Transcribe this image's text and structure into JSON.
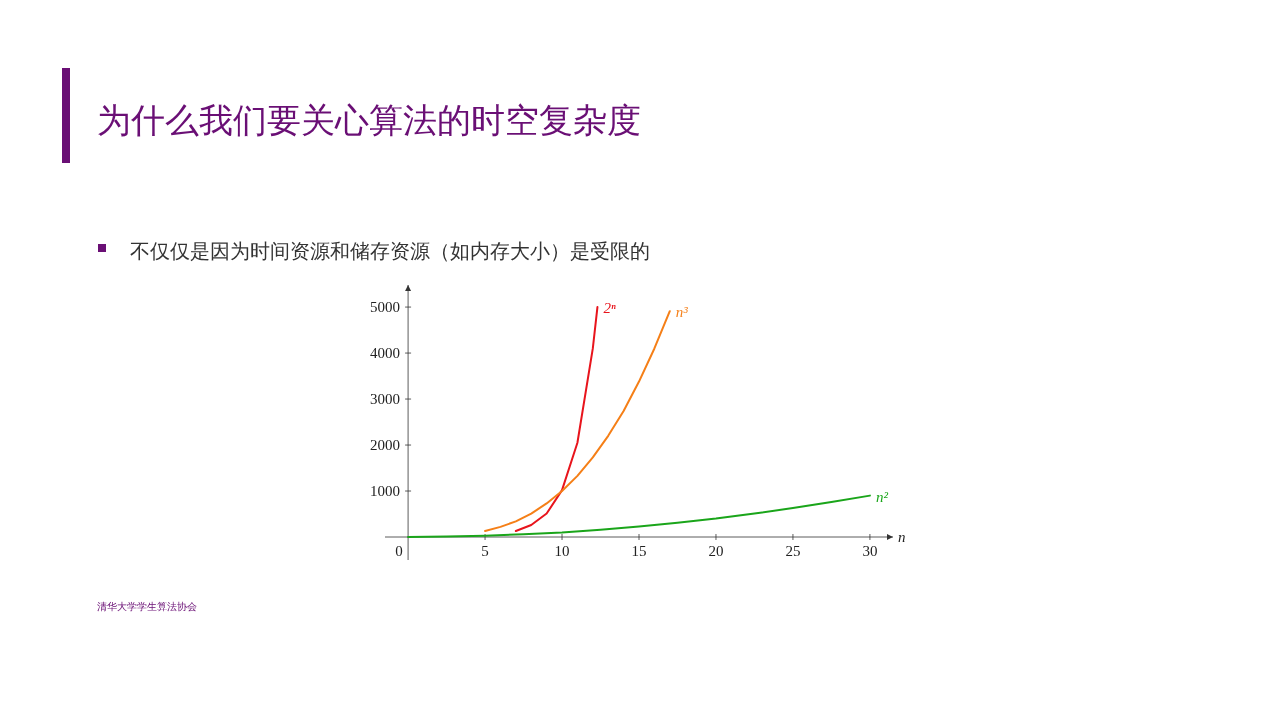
{
  "chart_data": {
    "type": "line",
    "title": "为什么我们要关心算法的时空复杂度",
    "subtitle": "不仅仅是因为时间资源和储存资源（如内存大小）是受限的",
    "xlabel": "n",
    "annotations": [
      "清华大学学生算法协会"
    ],
    "xlim": [
      -1.5,
      31.5
    ],
    "ylim": [
      -500,
      5480
    ],
    "xticks": [
      0,
      5,
      10,
      15,
      20,
      25,
      30
    ],
    "yticks": [
      1000,
      2000,
      3000,
      4000,
      5000
    ],
    "grid": false,
    "legend": false,
    "marker": "none",
    "line_style": "solid",
    "series": [
      {
        "name": "2ⁿ",
        "color": "#e8141c",
        "x": [
          7,
          8,
          9,
          10,
          11,
          12,
          12.3
        ],
        "values": [
          130,
          260,
          510,
          1020,
          2050,
          4100,
          5000
        ]
      },
      {
        "name": "n³",
        "color": "#f57f17",
        "x": [
          5,
          6,
          7,
          8,
          9,
          10,
          11,
          12,
          13,
          14,
          15,
          16,
          17
        ],
        "values": [
          130,
          220,
          340,
          510,
          730,
          1000,
          1330,
          1730,
          2200,
          2740,
          3380,
          4100,
          4910
        ]
      },
      {
        "name": "n²",
        "color": "#1aa51a",
        "x": [
          0,
          2.5,
          5,
          7.5,
          10,
          12.5,
          15,
          17.5,
          20,
          22.5,
          25,
          27.5,
          30
        ],
        "values": [
          0,
          10,
          30,
          60,
          100,
          160,
          230,
          310,
          400,
          510,
          630,
          760,
          900
        ]
      }
    ]
  }
}
